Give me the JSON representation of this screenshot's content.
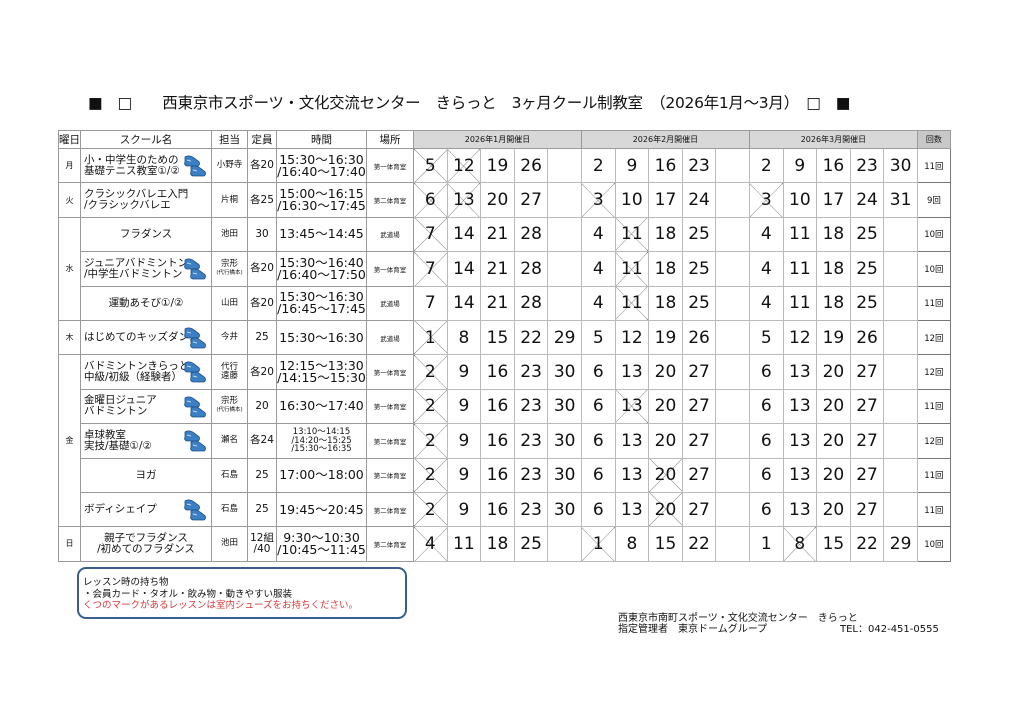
{
  "title": "■　□　　西東京市スポーツ・文化交流センター　きらっと　3ヶ月クール制教室　（2026年1月〜3月）　□　■",
  "headers": {
    "day": "曜日",
    "name": "スクール名",
    "staff": "担当",
    "capacity": "定員",
    "time": "時間",
    "place": "場所",
    "months": [
      "2026年1月開催日",
      "2026年2月開催日",
      "2026年3月開催日"
    ],
    "count": "回数"
  },
  "rows": [
    {
      "day": "月",
      "dayspan": 1,
      "name": "小・中学生のための\n基礎テニス教室①/②",
      "shoe": true,
      "staff": "小野寺",
      "capacity": "各20",
      "time": "15:30〜16:30\n/16:40〜17:40",
      "place": "第一体育室",
      "jan": [
        "5",
        "12",
        "19",
        "26",
        ""
      ],
      "feb": [
        "2",
        "9",
        "16",
        "23",
        ""
      ],
      "mar": [
        "2",
        "9",
        "16",
        "23",
        "30"
      ],
      "x": [
        "j0",
        "j1"
      ],
      "count": "11回"
    },
    {
      "day": "火",
      "dayspan": 1,
      "name": "クラシックバレエ入門\n/クラシックバレエ",
      "shoe": false,
      "staff": "片桐",
      "capacity": "各25",
      "time": "15:00〜16:15\n/16:30〜17:45",
      "place": "第二体育室",
      "jan": [
        "6",
        "13",
        "20",
        "27",
        ""
      ],
      "feb": [
        "3",
        "10",
        "17",
        "24",
        ""
      ],
      "mar": [
        "3",
        "10",
        "17",
        "24",
        "31"
      ],
      "x": [
        "j0",
        "j1",
        "f0",
        "m0"
      ],
      "count": "9回"
    },
    {
      "day": "水",
      "dayspan": 3,
      "name": "フラダンス",
      "center": true,
      "shoe": false,
      "staff": "池田",
      "capacity": "30",
      "time": "13:45〜14:45",
      "place": "武道場",
      "jan": [
        "7",
        "14",
        "21",
        "28",
        ""
      ],
      "feb": [
        "4",
        "11",
        "18",
        "25",
        ""
      ],
      "mar": [
        "4",
        "11",
        "18",
        "25",
        ""
      ],
      "x": [
        "j0",
        "f1"
      ],
      "count": "10回"
    },
    {
      "name": "ジュニアバドミントン\n/中学生バドミントン",
      "shoe": true,
      "staff": "宗形",
      "staff_sub": "(代行橋本)",
      "capacity": "各20",
      "time": "15:30〜16:40\n/16:40〜17:50",
      "place": "第一体育室",
      "jan": [
        "7",
        "14",
        "21",
        "28",
        ""
      ],
      "feb": [
        "4",
        "11",
        "18",
        "25",
        ""
      ],
      "mar": [
        "4",
        "11",
        "18",
        "25",
        ""
      ],
      "x": [
        "j0",
        "f1"
      ],
      "count": "10回"
    },
    {
      "name": "運動あそび①/②",
      "center": true,
      "shoe": false,
      "staff": "山田",
      "capacity": "各20",
      "time": "15:30〜16:30\n/16:45〜17:45",
      "place": "武道場",
      "jan": [
        "7",
        "14",
        "21",
        "28",
        ""
      ],
      "feb": [
        "4",
        "11",
        "18",
        "25",
        ""
      ],
      "mar": [
        "4",
        "11",
        "18",
        "25",
        ""
      ],
      "x": [
        "f1"
      ],
      "count": "11回"
    },
    {
      "day": "木",
      "dayspan": 1,
      "name": "はじめてのキッズダンス",
      "shoe": true,
      "staff": "今井",
      "capacity": "25",
      "time": "15:30〜16:30",
      "place": "武道場",
      "jan": [
        "1",
        "8",
        "15",
        "22",
        "29"
      ],
      "feb": [
        "5",
        "12",
        "19",
        "26",
        ""
      ],
      "mar": [
        "5",
        "12",
        "19",
        "26",
        ""
      ],
      "x": [
        "j0"
      ],
      "count": "12回"
    },
    {
      "day": "金",
      "dayspan": 5,
      "name": "バドミントンきらっと\n中級/初級（経験者）",
      "shoe": true,
      "staff": "代行\n遠藤",
      "capacity": "各20",
      "time": "12:15〜13:30\n/14:15〜15:30",
      "place": "第一体育室",
      "jan": [
        "2",
        "9",
        "16",
        "23",
        "30"
      ],
      "feb": [
        "6",
        "13",
        "20",
        "27",
        ""
      ],
      "mar": [
        "6",
        "13",
        "20",
        "27",
        ""
      ],
      "x": [
        "j0"
      ],
      "count": "12回"
    },
    {
      "name": "金曜日ジュニア\nバドミントン",
      "shoe": true,
      "staff": "宗形",
      "staff_sub": "(代行橋本)",
      "capacity": "20",
      "time": "16:30〜17:40",
      "place": "第一体育室",
      "jan": [
        "2",
        "9",
        "16",
        "23",
        "30"
      ],
      "feb": [
        "6",
        "13",
        "20",
        "27",
        ""
      ],
      "mar": [
        "6",
        "13",
        "20",
        "27",
        ""
      ],
      "x": [
        "j0",
        "f1"
      ],
      "count": "11回"
    },
    {
      "name": "卓球教室\n実技/基礎①/②",
      "shoe": true,
      "staff": "瀬名",
      "capacity": "各24",
      "time": "13:10〜14:15\n/14:20〜15:25\n/15:30〜16:35",
      "small_time": true,
      "place": "第二体育室",
      "jan": [
        "2",
        "9",
        "16",
        "23",
        "30"
      ],
      "feb": [
        "6",
        "13",
        "20",
        "27",
        ""
      ],
      "mar": [
        "6",
        "13",
        "20",
        "27",
        ""
      ],
      "x": [
        "j0"
      ],
      "count": "12回"
    },
    {
      "name": "ヨガ",
      "center": true,
      "shoe": false,
      "staff": "石島",
      "capacity": "25",
      "time": "17:00〜18:00",
      "place": "第二体育室",
      "jan": [
        "2",
        "9",
        "16",
        "23",
        "30"
      ],
      "feb": [
        "6",
        "13",
        "20",
        "27",
        ""
      ],
      "mar": [
        "6",
        "13",
        "20",
        "27",
        ""
      ],
      "x": [
        "j0",
        "f2"
      ],
      "count": "11回"
    },
    {
      "name": "ボディシェイプ",
      "shoe": true,
      "staff": "石島",
      "capacity": "25",
      "time": "19:45〜20:45",
      "place": "第二体育室",
      "jan": [
        "2",
        "9",
        "16",
        "23",
        "30"
      ],
      "feb": [
        "6",
        "13",
        "20",
        "27",
        ""
      ],
      "mar": [
        "6",
        "13",
        "20",
        "27",
        ""
      ],
      "x": [
        "j0",
        "f2"
      ],
      "count": "11回"
    },
    {
      "day": "日",
      "dayspan": 1,
      "name": "親子でフラダンス\n/初めてのフラダンス",
      "center": true,
      "shoe": false,
      "staff": "池田",
      "capacity": "12組\n/40",
      "time": "9:30〜10:30\n/10:45〜11:45",
      "place": "第二体育室",
      "jan": [
        "4",
        "11",
        "18",
        "25",
        ""
      ],
      "feb": [
        "1",
        "8",
        "15",
        "22",
        ""
      ],
      "mar": [
        "1",
        "8",
        "15",
        "22",
        "29"
      ],
      "x": [
        "j0",
        "f0",
        "m1"
      ],
      "count": "10回"
    }
  ],
  "note": {
    "line1": "レッスン時の持ち物",
    "line2": "・会員カード・タオル・飲み物・動きやすい服装",
    "line3": "くつのマークがあるレッスンは室内シューズをお持ちください。"
  },
  "footer": {
    "line1": "西東京市南町スポーツ・文化交流センター　きらっと",
    "line2": "指定管理者　東京ドームグループ",
    "tel": "TEL：042-451-0555"
  },
  "colors": {
    "shoe": "#3b7fc4",
    "note_border": "#3a5f8f",
    "note_red": "#d63a3a",
    "header_bg": "#d8d8d8"
  }
}
